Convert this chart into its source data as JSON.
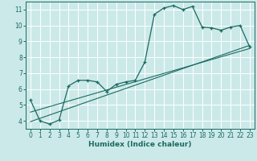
{
  "xlabel": "Humidex (Indice chaleur)",
  "bg_color": "#cce9e9",
  "grid_color": "#ffffff",
  "line_color": "#1a6b60",
  "xlim": [
    -0.5,
    23.5
  ],
  "ylim": [
    3.5,
    11.5
  ],
  "xticks": [
    0,
    1,
    2,
    3,
    4,
    5,
    6,
    7,
    8,
    9,
    10,
    11,
    12,
    13,
    14,
    15,
    16,
    17,
    18,
    19,
    20,
    21,
    22,
    23
  ],
  "yticks": [
    4,
    5,
    6,
    7,
    8,
    9,
    10,
    11
  ],
  "main_x": [
    0,
    1,
    2,
    3,
    4,
    5,
    6,
    7,
    8,
    9,
    10,
    11,
    12,
    13,
    14,
    15,
    16,
    17,
    18,
    19,
    20,
    21,
    22,
    23
  ],
  "main_y": [
    5.3,
    4.0,
    3.8,
    4.05,
    6.2,
    6.55,
    6.55,
    6.45,
    5.85,
    6.3,
    6.45,
    6.55,
    7.7,
    10.7,
    11.1,
    11.25,
    11.0,
    11.2,
    9.9,
    9.85,
    9.7,
    9.9,
    10.0,
    8.65
  ],
  "line1_x": [
    0,
    23
  ],
  "line1_y": [
    3.95,
    8.75
  ],
  "line2_x": [
    0,
    23
  ],
  "line2_y": [
    4.55,
    8.55
  ]
}
